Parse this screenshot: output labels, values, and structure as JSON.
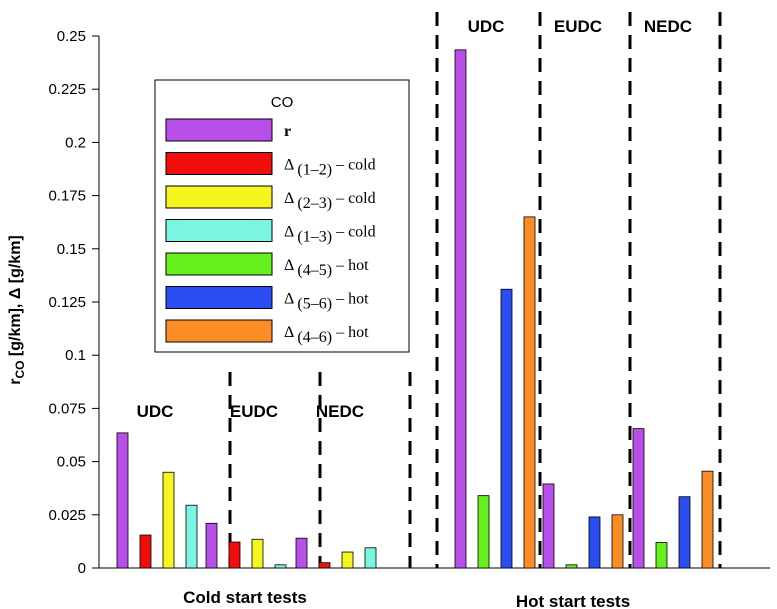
{
  "chart_data": {
    "type": "bar",
    "ylabel": "r_CO [g/km], Δ [g/km]",
    "ylabel_main": "r",
    "ylabel_sub": "CO",
    "ylabel_rest": " [g/km], Δ [g/km]",
    "ylim": [
      0,
      0.25
    ],
    "yticks": [
      "0",
      "0.025",
      "0.05",
      "0.075",
      "0.1",
      "0.125",
      "0.15",
      "0.175",
      "0.2",
      "0.225",
      "0.25"
    ],
    "ytick_values": [
      0,
      0.025,
      0.05,
      0.075,
      0.1,
      0.125,
      0.15,
      0.175,
      0.2,
      0.225,
      0.25
    ],
    "legend": {
      "title": "CO",
      "location": "upper-left",
      "entries": [
        {
          "key": "r",
          "label": "r",
          "color": "#b74fe8"
        },
        {
          "key": "d12",
          "label": "Δ (1–2) – cold",
          "delta": "Δ",
          "sub": "(1–2)",
          "rest": " – cold",
          "color": "#f20d0d"
        },
        {
          "key": "d23",
          "label": "Δ (2–3) – cold",
          "delta": "Δ",
          "sub": "(2–3)",
          "rest": " – cold",
          "color": "#f5f51f"
        },
        {
          "key": "d13",
          "label": "Δ (1–3) – cold",
          "delta": "Δ",
          "sub": "(1–3)",
          "rest": " – cold",
          "color": "#7af5e0"
        },
        {
          "key": "d45",
          "label": "Δ (4–5) – hot",
          "delta": "Δ",
          "sub": "(4–5)",
          "rest": " – hot",
          "color": "#66f01e"
        },
        {
          "key": "d56",
          "label": "Δ (5–6) – hot",
          "delta": "Δ",
          "sub": "(5–6)",
          "rest": " – hot",
          "color": "#2a4ef2"
        },
        {
          "key": "d46",
          "label": "Δ (4–6) – hot",
          "delta": "Δ",
          "sub": "(4–6)",
          "rest": " – hot",
          "color": "#fb8c26"
        }
      ]
    },
    "groups": [
      {
        "name": "Cold start tests",
        "series_keys": [
          "r",
          "d12",
          "d23",
          "d13"
        ],
        "cycles": [
          {
            "name": "UDC",
            "values": [
              0.0635,
              0.0155,
              0.045,
              0.0295
            ]
          },
          {
            "name": "EUDC",
            "values": [
              0.021,
              0.0122,
              0.0135,
              0.0015
            ]
          },
          {
            "name": "NEDC",
            "values": [
              0.014,
              0.0025,
              0.0075,
              0.0095
            ]
          }
        ]
      },
      {
        "name": "Hot start tests",
        "series_keys": [
          "r",
          "d45",
          "d56",
          "d46"
        ],
        "cycles": [
          {
            "name": "UDC",
            "values": [
              0.2435,
              0.034,
              0.131,
              0.165
            ]
          },
          {
            "name": "EUDC",
            "values": [
              0.0395,
              0.0015,
              0.024,
              0.025
            ]
          },
          {
            "name": "NEDC",
            "values": [
              0.0655,
              0.012,
              0.0335,
              0.0455
            ]
          }
        ]
      }
    ]
  }
}
